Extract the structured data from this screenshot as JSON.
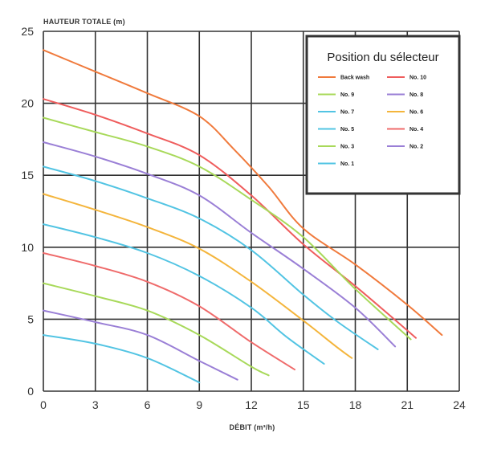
{
  "chart_data": {
    "type": "line",
    "title": "",
    "ylabel": "HAUTEUR TOTALE (m)",
    "xlabel": "DÉBIT (m³/h)",
    "xlim": [
      0,
      24
    ],
    "ylim": [
      0,
      25
    ],
    "xticks": [
      0,
      3,
      6,
      9,
      12,
      15,
      18,
      21,
      24
    ],
    "yticks": [
      0,
      5,
      10,
      15,
      20,
      25
    ],
    "grid": true,
    "legend": {
      "title": "Position du sélecteur",
      "placement": "top-right"
    },
    "series": [
      {
        "name": "Back wash",
        "color": "#f07a3c",
        "x": [
          0,
          3,
          6,
          9,
          11,
          13,
          15,
          18,
          21,
          23
        ],
        "y": [
          23.7,
          22.2,
          20.7,
          19.1,
          16.8,
          14.2,
          11.3,
          8.8,
          6.0,
          3.9
        ]
      },
      {
        "name": "No. 10",
        "color": "#ef5d5d",
        "x": [
          0,
          3,
          6,
          9,
          12,
          15,
          18,
          21.5
        ],
        "y": [
          20.3,
          19.2,
          17.9,
          16.4,
          13.6,
          10.2,
          7.3,
          3.7
        ]
      },
      {
        "name": "No. 9",
        "color": "#a8d95a",
        "x": [
          0,
          3,
          6,
          9,
          12,
          15,
          18,
          21.2
        ],
        "y": [
          19.0,
          18.0,
          17.0,
          15.6,
          13.3,
          10.7,
          7.1,
          3.6
        ]
      },
      {
        "name": "No. 8",
        "color": "#9a7fd6",
        "x": [
          0,
          3,
          6,
          9,
          12,
          15,
          18,
          20.3
        ],
        "y": [
          17.3,
          16.3,
          15.1,
          13.6,
          11.0,
          8.5,
          5.8,
          3.1
        ]
      },
      {
        "name": "No. 7",
        "color": "#52c4e3",
        "x": [
          0,
          3,
          6,
          9,
          12,
          15,
          17,
          19.3
        ],
        "y": [
          15.6,
          14.6,
          13.4,
          12.0,
          9.8,
          6.7,
          4.8,
          2.9
        ]
      },
      {
        "name": "No. 6",
        "color": "#f4b53c",
        "x": [
          0,
          3,
          6,
          9,
          12,
          15,
          17,
          17.8
        ],
        "y": [
          13.7,
          12.6,
          11.4,
          9.9,
          7.6,
          4.9,
          3.0,
          2.3
        ]
      },
      {
        "name": "No. 5",
        "color": "#52c4e3",
        "x": [
          0,
          3,
          6,
          9,
          12,
          14,
          16.2
        ],
        "y": [
          11.6,
          10.7,
          9.6,
          8.0,
          5.8,
          3.8,
          1.9
        ]
      },
      {
        "name": "No. 4",
        "color": "#ef6b6b",
        "x": [
          0,
          3,
          6,
          9,
          12,
          14.5
        ],
        "y": [
          9.6,
          8.7,
          7.6,
          5.9,
          3.4,
          1.5
        ]
      },
      {
        "name": "No. 3",
        "color": "#a8d95a",
        "x": [
          0,
          3,
          6,
          9,
          12,
          13
        ],
        "y": [
          7.5,
          6.6,
          5.6,
          3.9,
          1.7,
          1.1
        ]
      },
      {
        "name": "No. 2",
        "color": "#9a7fd6",
        "x": [
          0,
          3,
          6,
          9,
          11.2
        ],
        "y": [
          5.6,
          4.8,
          3.9,
          2.1,
          0.8
        ]
      },
      {
        "name": "No. 1",
        "color": "#52c4e3",
        "x": [
          0,
          3,
          6,
          9
        ],
        "y": [
          3.9,
          3.3,
          2.3,
          0.6
        ]
      }
    ],
    "legend_order": [
      [
        "Back wash",
        "No. 10"
      ],
      [
        "No. 9",
        "No. 8"
      ],
      [
        "No. 7",
        "No. 6"
      ],
      [
        "No. 5",
        "No. 4"
      ],
      [
        "No. 3",
        "No. 2"
      ],
      [
        "No. 1",
        null
      ]
    ]
  }
}
